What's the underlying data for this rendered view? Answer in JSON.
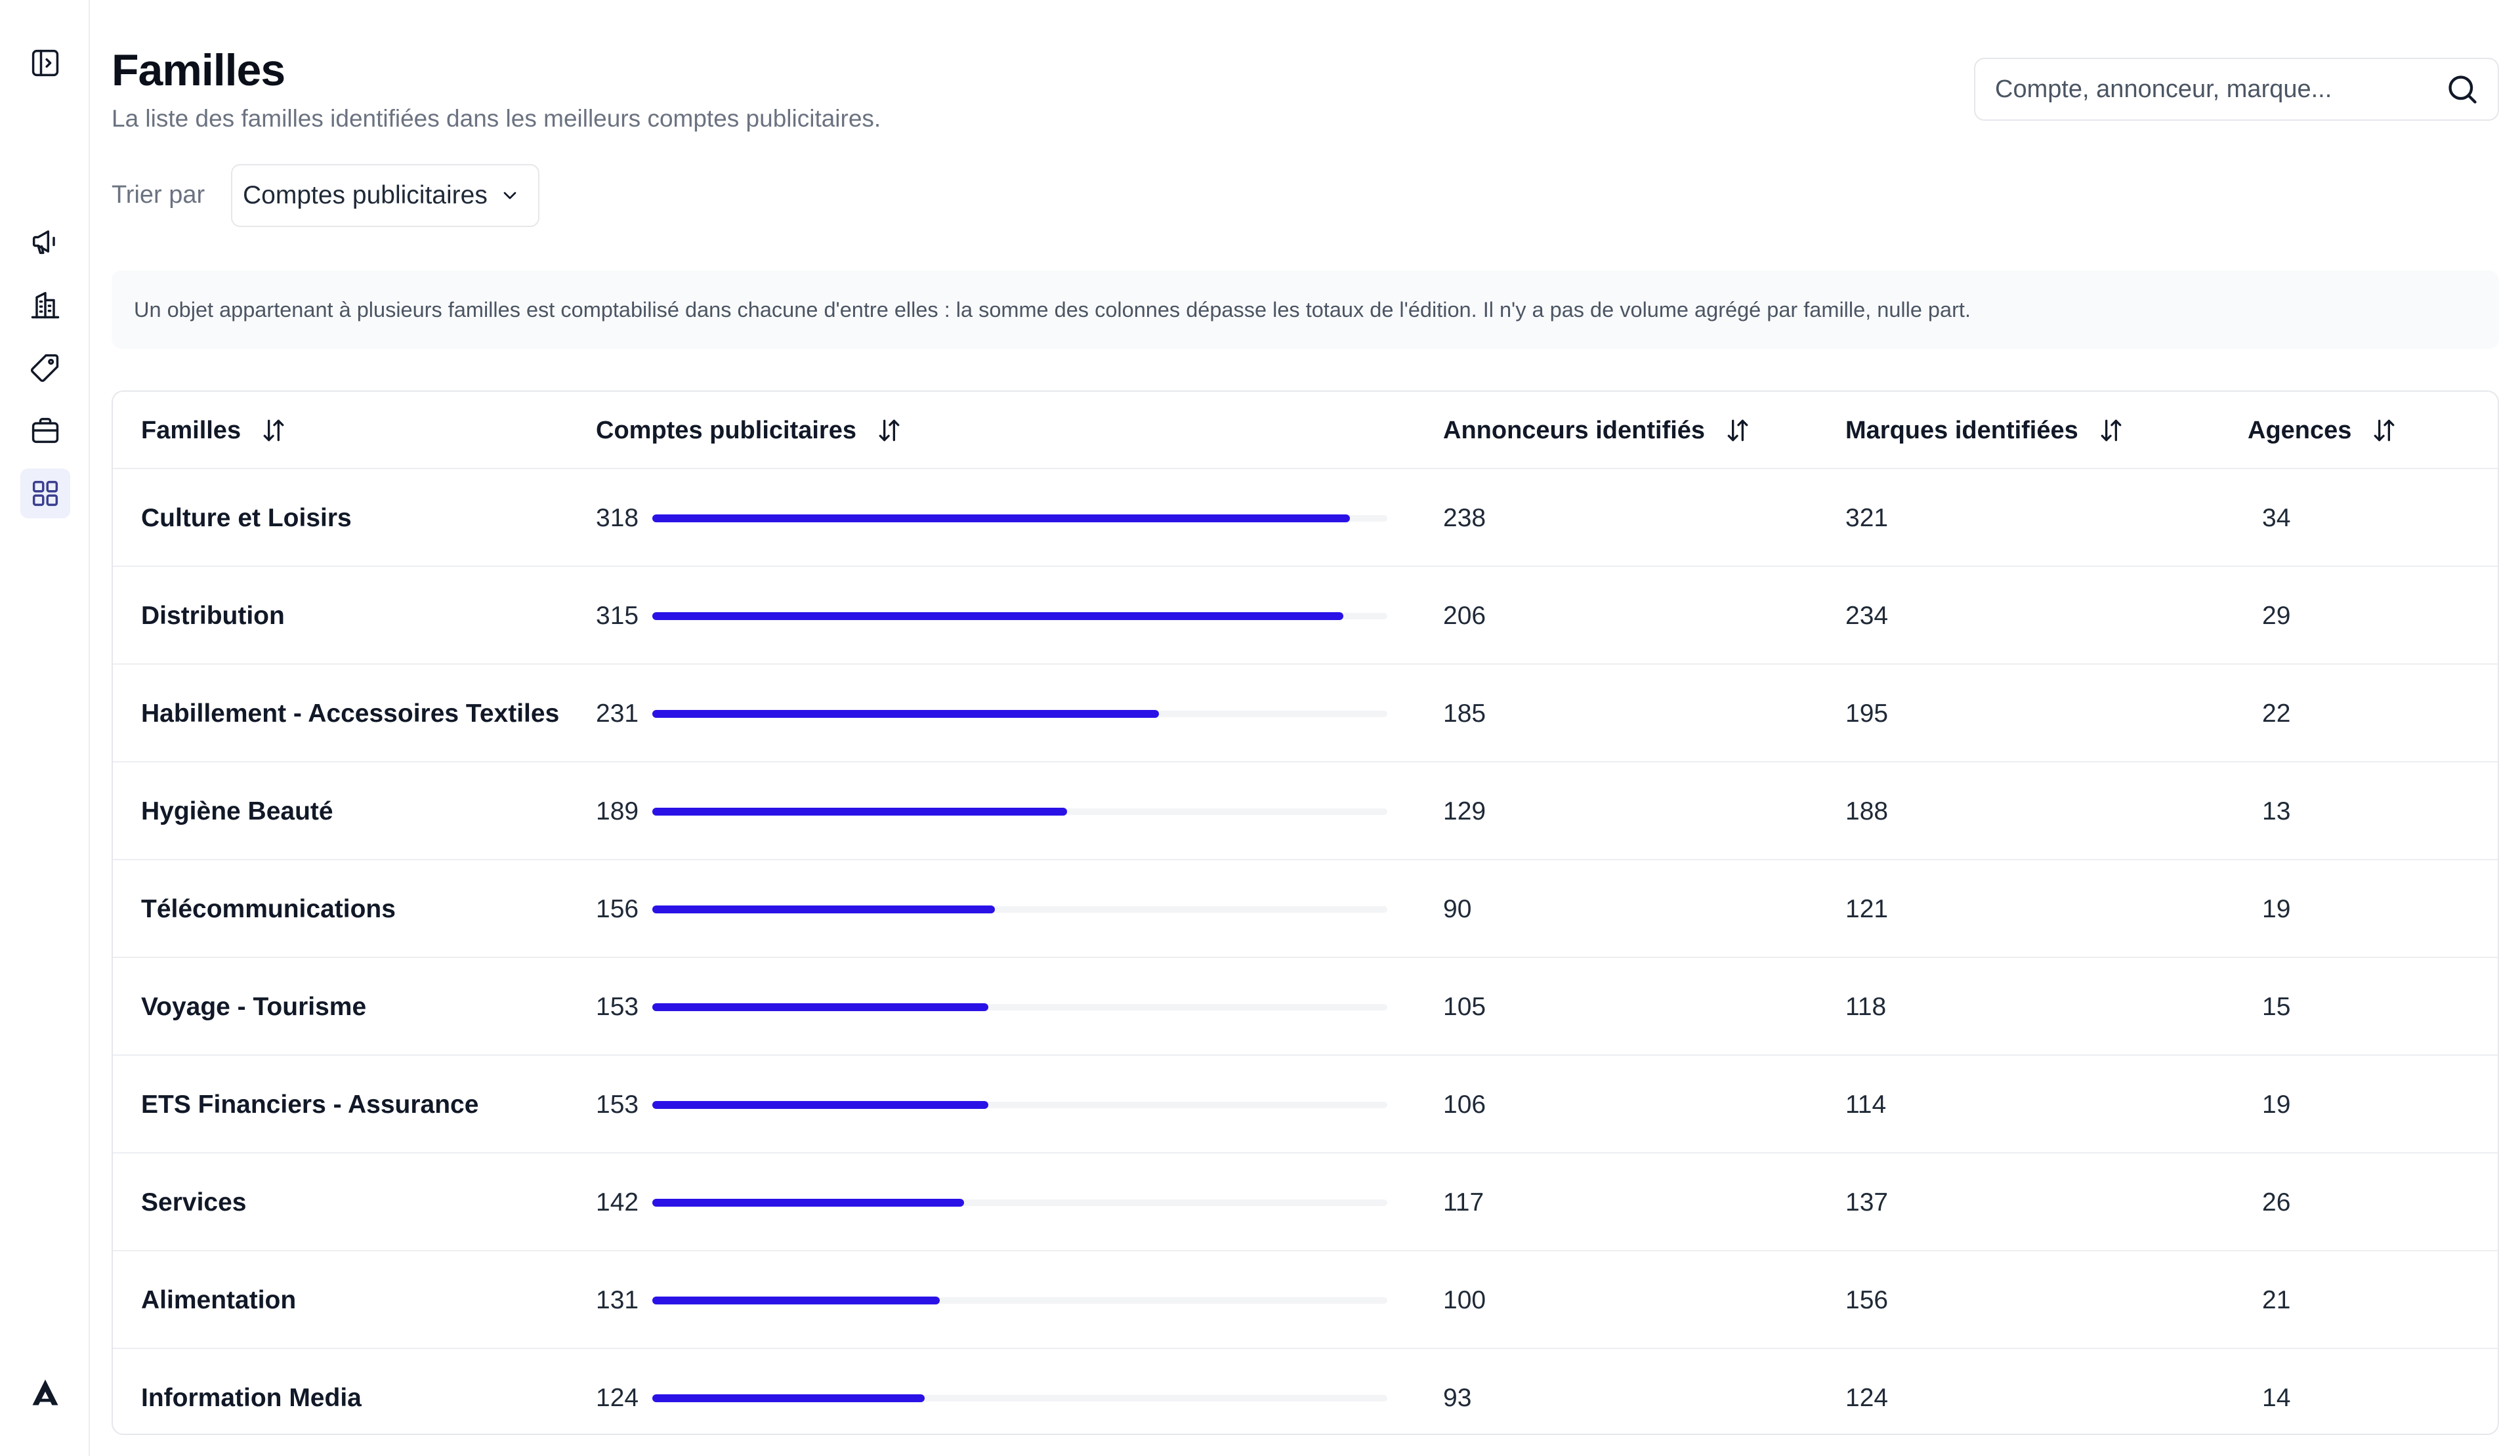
{
  "header": {
    "title": "Familles",
    "subtitle": "La liste des familles identifiées dans les meilleurs comptes publicitaires."
  },
  "search": {
    "placeholder": "Compte, annonceur, marque..."
  },
  "sort": {
    "label": "Trier par",
    "selected": "Comptes publicitaires"
  },
  "info": {
    "text": "Un objet appartenant à plusieurs familles est comptabilisé dans chacune d'entre elles : la somme des colonnes dépasse les totaux de l'édition. Il n'y a pas de volume agrégé par famille, nulle part."
  },
  "sidebar": {
    "items": [
      {
        "icon": "panel-toggle-icon"
      },
      {
        "icon": "megaphone-icon"
      },
      {
        "icon": "building-icon"
      },
      {
        "icon": "tag-icon"
      },
      {
        "icon": "briefcase-icon"
      },
      {
        "icon": "grid-icon",
        "active": true
      }
    ],
    "logo_icon": "app-logo-icon"
  },
  "table": {
    "columns": [
      "Familles",
      "Comptes publicitaires",
      "Annonceurs identifiés",
      "Marques identifiées",
      "Agences"
    ],
    "bar_max": 335,
    "rows": [
      {
        "famille": "Culture et Loisirs",
        "comptes": 318,
        "annonceurs": 238,
        "marques": 321,
        "agences": 34
      },
      {
        "famille": "Distribution",
        "comptes": 315,
        "annonceurs": 206,
        "marques": 234,
        "agences": 29
      },
      {
        "famille": "Habillement - Accessoires Textiles",
        "comptes": 231,
        "annonceurs": 185,
        "marques": 195,
        "agences": 22
      },
      {
        "famille": "Hygiène Beauté",
        "comptes": 189,
        "annonceurs": 129,
        "marques": 188,
        "agences": 13
      },
      {
        "famille": "Télécommunications",
        "comptes": 156,
        "annonceurs": 90,
        "marques": 121,
        "agences": 19
      },
      {
        "famille": "Voyage - Tourisme",
        "comptes": 153,
        "annonceurs": 105,
        "marques": 118,
        "agences": 15
      },
      {
        "famille": "ETS Financiers - Assurance",
        "comptes": 153,
        "annonceurs": 106,
        "marques": 114,
        "agences": 19
      },
      {
        "famille": "Services",
        "comptes": 142,
        "annonceurs": 117,
        "marques": 137,
        "agences": 26
      },
      {
        "famille": "Alimentation",
        "comptes": 131,
        "annonceurs": 100,
        "marques": 156,
        "agences": 21
      },
      {
        "famille": "Information Media",
        "comptes": 124,
        "annonceurs": 93,
        "marques": 124,
        "agences": 14
      }
    ]
  },
  "colors": {
    "bar": "#2a12e6",
    "accent_bg": "#eef0fb"
  }
}
